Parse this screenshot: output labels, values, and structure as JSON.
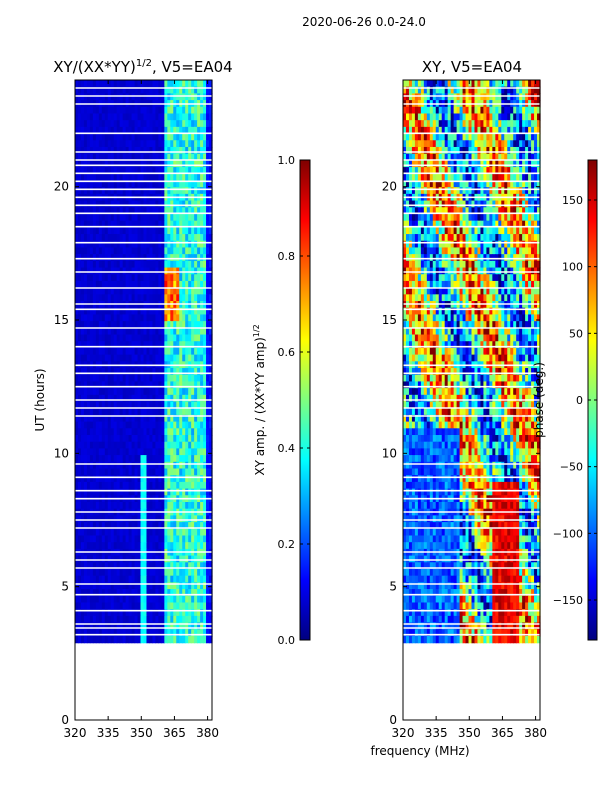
{
  "suptitle": "2020-06-26 0.0-24.0",
  "colors": {
    "background": "#ffffff",
    "missing": "#ffffff",
    "jet_stops": [
      "#00007f",
      "#0000ff",
      "#007fff",
      "#00ffff",
      "#7fff7f",
      "#ffff00",
      "#ff7f00",
      "#ff0000",
      "#7f0000"
    ]
  },
  "chart_data": [
    {
      "type": "heatmap",
      "title": "XY/(XX*YY)",
      "title_sup": "1/2",
      "title_suffix": ", V5=EA04",
      "xlabel": "",
      "ylabel": "UT (hours)",
      "xlim": [
        320,
        382
      ],
      "ylim": [
        0,
        24
      ],
      "xticks": [
        320,
        335,
        350,
        365,
        380
      ],
      "yticks": [
        0,
        5,
        10,
        15,
        20
      ],
      "data_start_hour": 2.9,
      "colorbar": {
        "label": "XY amp. / (XX*YY amp)",
        "label_sup": "1/2",
        "range": [
          0.0,
          1.0
        ],
        "ticks": [
          "0.0",
          "0.2",
          "0.4",
          "0.6",
          "0.8",
          "1.0"
        ]
      }
    },
    {
      "type": "heatmap",
      "title": "XY, V5=EA04",
      "xlabel": "frequency (MHz)",
      "ylabel": "",
      "xlim": [
        320,
        382
      ],
      "ylim": [
        0,
        24
      ],
      "xticks": [
        320,
        335,
        350,
        365,
        380
      ],
      "yticks": [
        0,
        5,
        10,
        15,
        20
      ],
      "data_start_hour": 2.9,
      "colorbar": {
        "label": "phase (deg.)",
        "range": [
          -180,
          180
        ],
        "ticks": [
          "−150",
          "−100",
          "−50",
          "0",
          "50",
          "100",
          "150"
        ]
      }
    }
  ],
  "gap_hours": [
    3.2,
    3.45,
    3.6,
    4.1,
    4.7,
    5.1,
    5.7,
    6.0,
    6.3,
    7.2,
    7.5,
    7.8,
    8.3,
    8.6,
    9.1,
    9.6,
    11.4,
    11.7,
    12.0,
    12.5,
    13.0,
    13.3,
    14.0,
    14.7,
    15.4,
    15.6,
    16.2,
    16.8,
    17.3,
    17.9,
    18.5,
    19.0,
    19.3,
    19.6,
    19.9,
    20.2,
    20.5,
    20.8,
    21.0,
    21.3,
    22.0,
    23.1,
    23.4,
    23.7
  ]
}
